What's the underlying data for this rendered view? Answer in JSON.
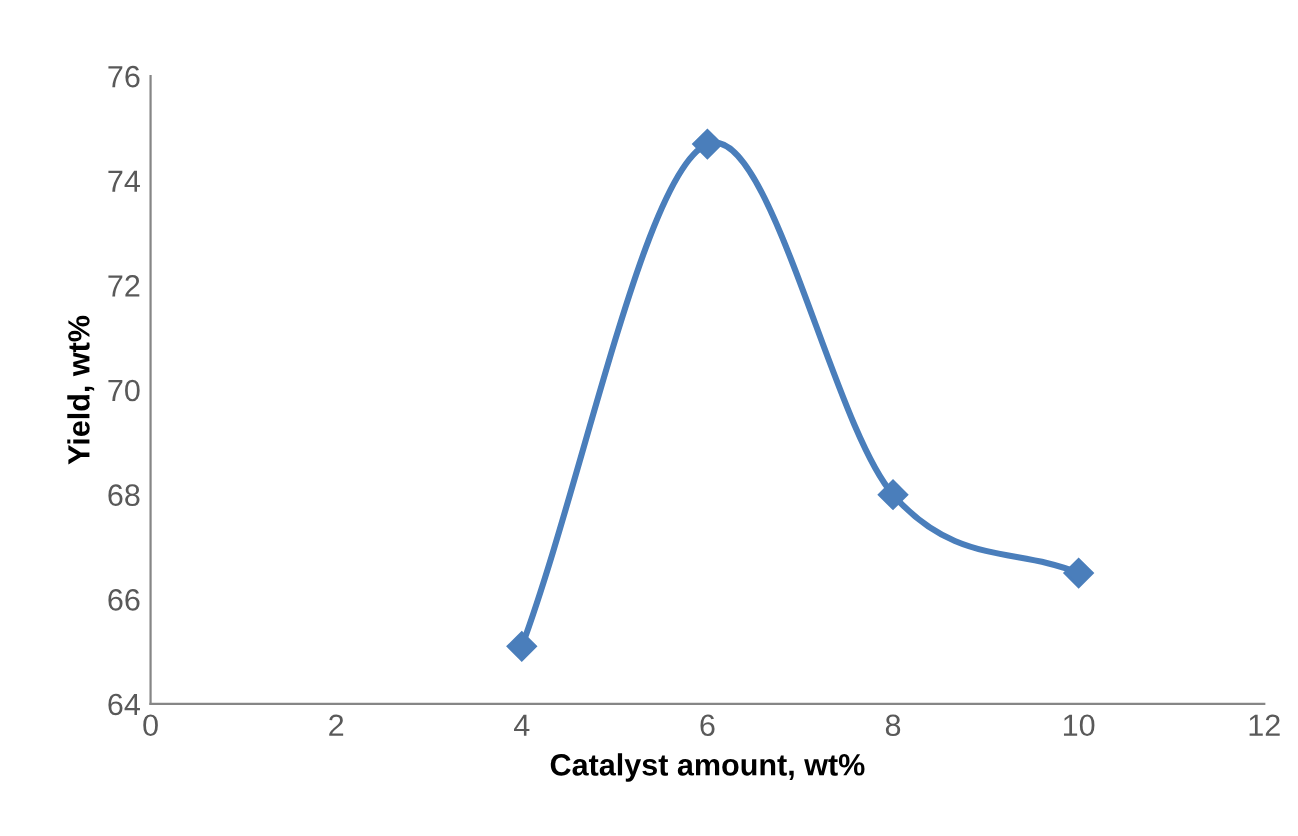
{
  "chart_data": {
    "type": "line",
    "xlabel": "Catalyst amount, wt%",
    "ylabel": "Yield, wt%",
    "x": [
      4,
      6,
      8,
      10
    ],
    "series": [
      {
        "color": "#4a7ebb",
        "values": [
          65.1,
          74.7,
          68.0,
          66.5
        ]
      }
    ],
    "xlim": [
      0,
      12
    ],
    "xticks": [
      0,
      2,
      4,
      6,
      8,
      10,
      12
    ],
    "ylim": [
      64,
      76
    ],
    "yticks": [
      64,
      66,
      68,
      70,
      72,
      74,
      76
    ],
    "grid": false,
    "legend": false,
    "marker": "diamond",
    "line_style": "solid"
  }
}
